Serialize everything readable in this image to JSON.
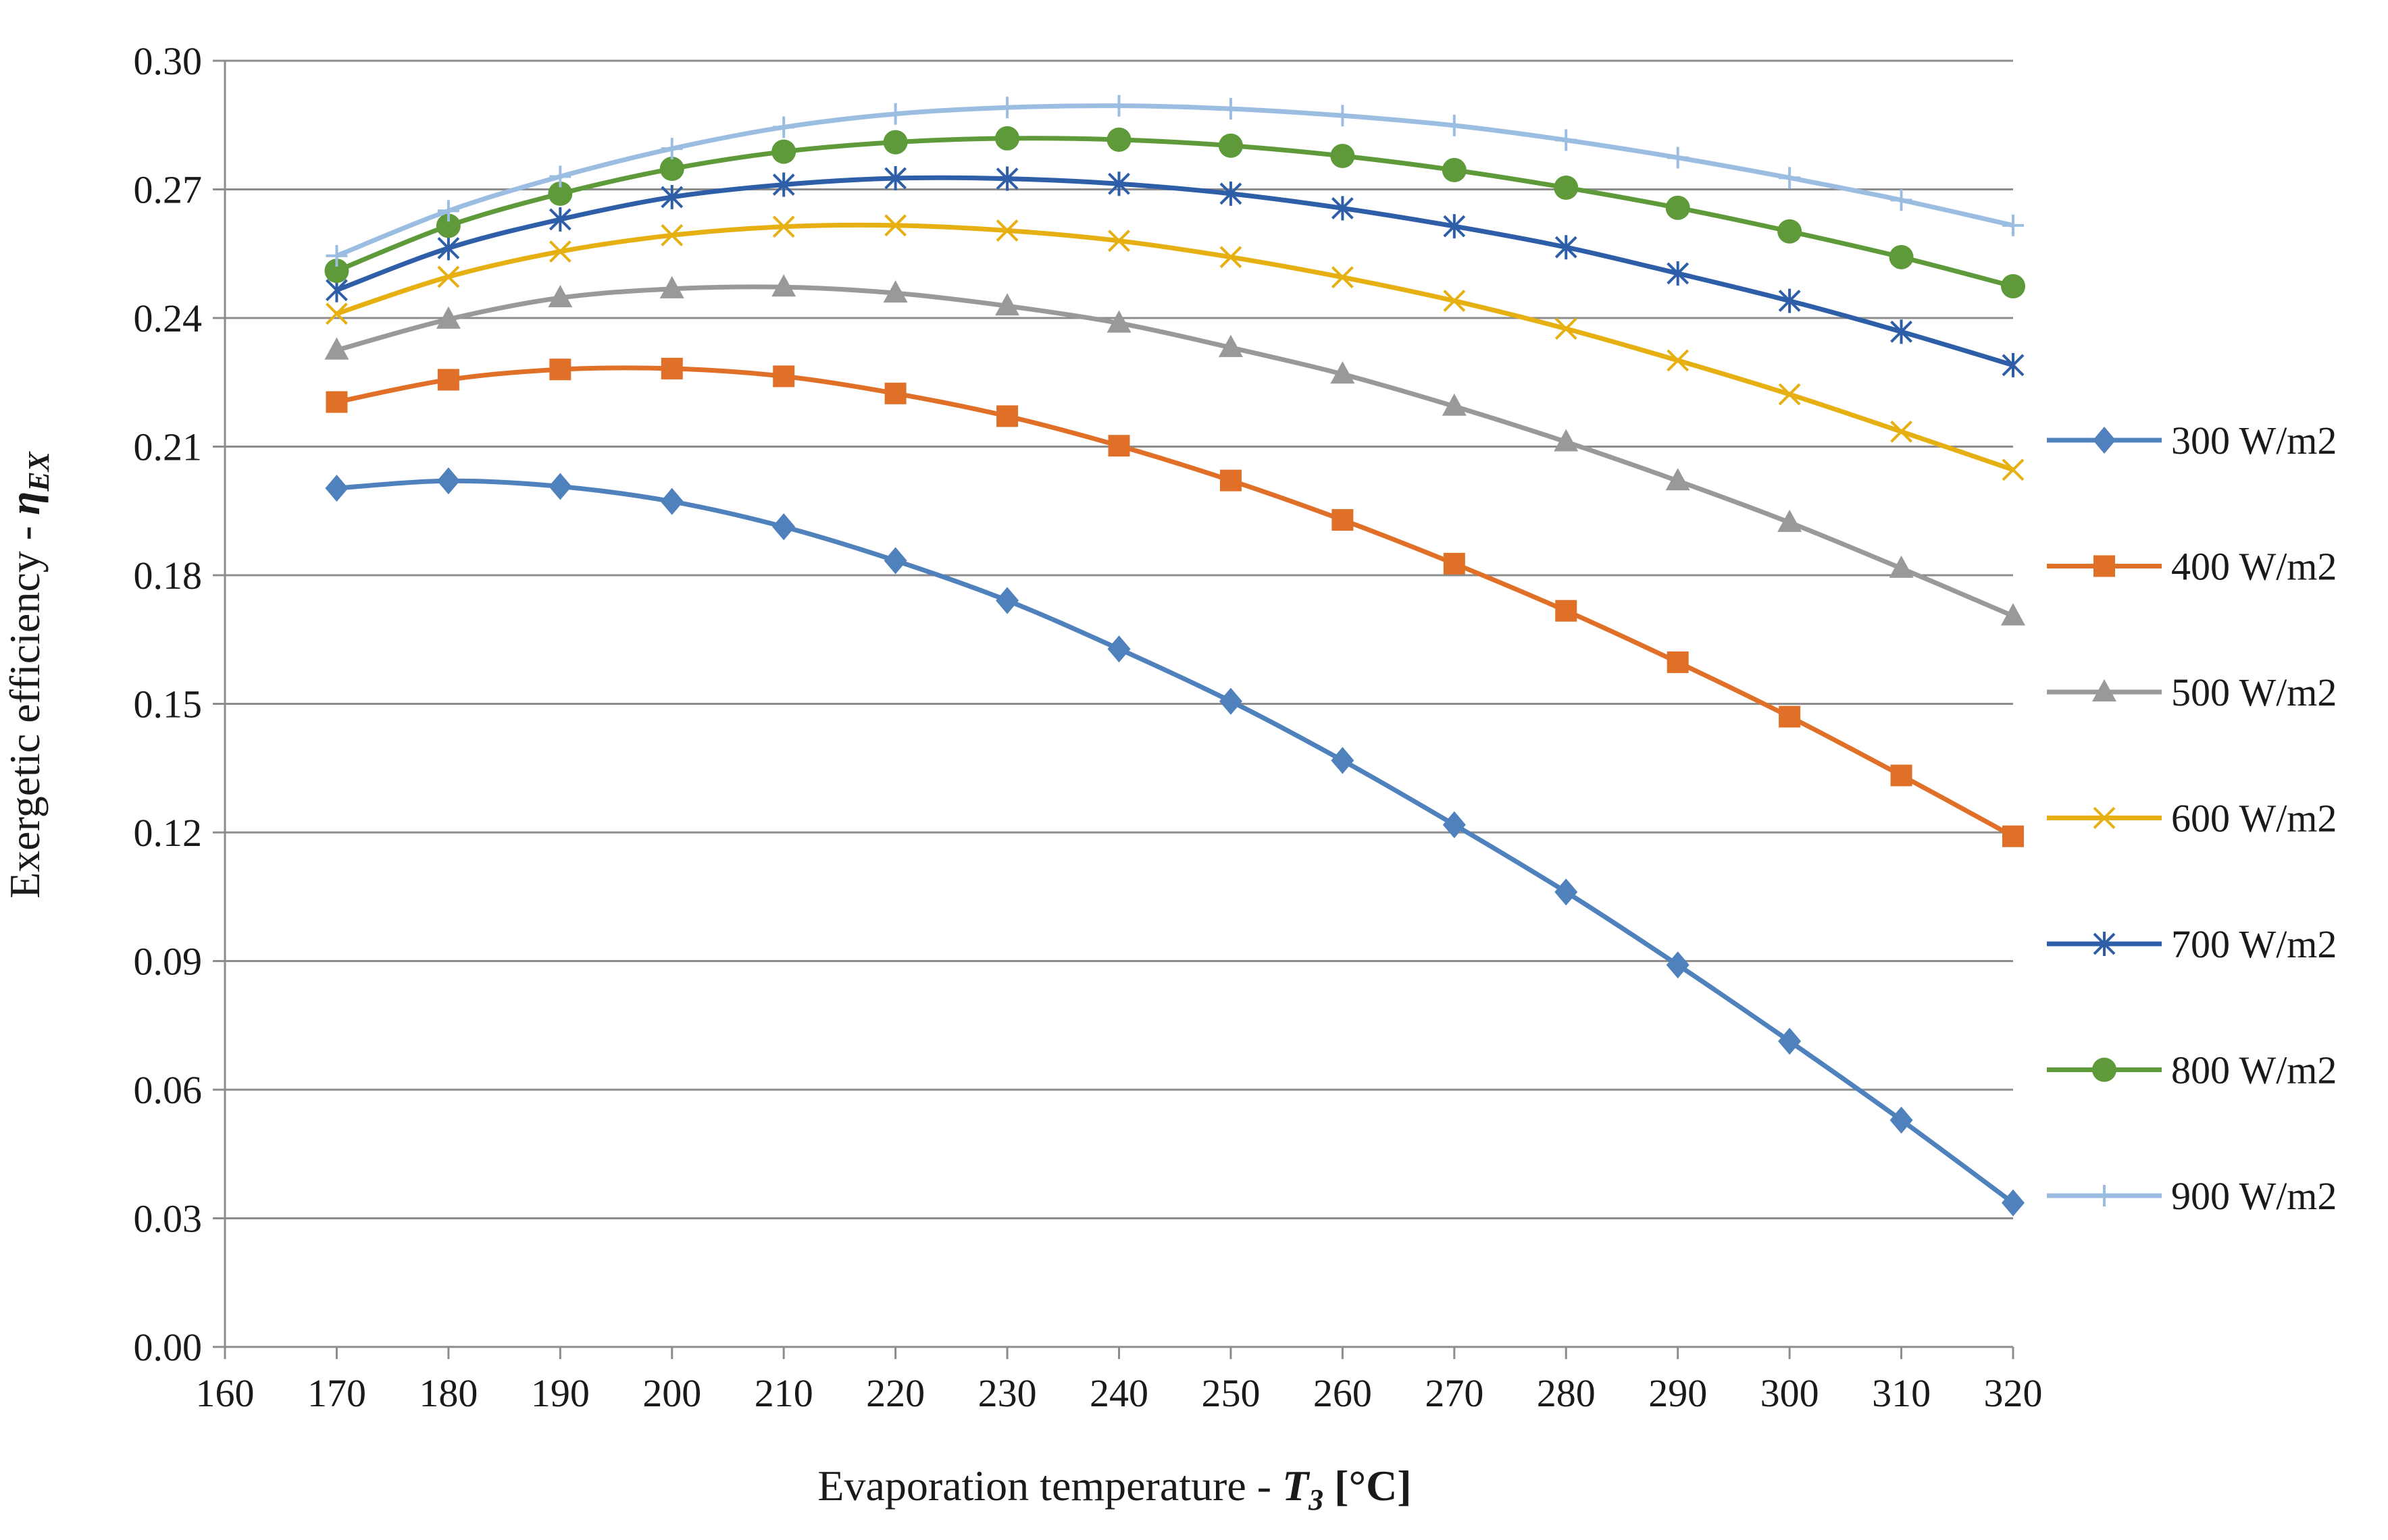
{
  "chart_data": {
    "type": "line",
    "title": "",
    "xlabel": {
      "text": "Evaporation temperature - ",
      "var": "T",
      "sub": "3",
      "unit": " [°C]"
    },
    "ylabel": {
      "text": "Exergetic efficiency - ",
      "var": "η",
      "sub": "EX"
    },
    "xlim": [
      160,
      320
    ],
    "ylim": [
      0,
      0.3
    ],
    "x_ticks": [
      160,
      170,
      180,
      190,
      200,
      210,
      220,
      230,
      240,
      250,
      260,
      270,
      280,
      290,
      300,
      310,
      320
    ],
    "x_tick_labels": [
      "160",
      "170",
      "180",
      "190",
      "200",
      "210",
      "220",
      "230",
      "240",
      "250",
      "260",
      "270",
      "280",
      "290",
      "300",
      "310",
      "320"
    ],
    "y_ticks": [
      0,
      0.03,
      0.06,
      0.09,
      0.12,
      0.15,
      0.18,
      0.21,
      0.24,
      0.27,
      0.3
    ],
    "y_tick_labels": [
      "0.00",
      "0.03",
      "0.06",
      "0.09",
      "0.12",
      "0.15",
      "0.18",
      "0.21",
      "0.24",
      "0.27",
      "0.30"
    ],
    "grid": "horizontal",
    "legend_position": "right",
    "x": [
      170,
      180,
      190,
      200,
      210,
      220,
      230,
      240,
      250,
      260,
      270,
      280,
      290,
      300,
      310,
      320
    ],
    "series": [
      {
        "name": "300 W/m2",
        "color": "#4f81bd",
        "marker": "diamond",
        "values": [
          0.2003,
          0.202,
          0.2007,
          0.1972,
          0.1913,
          0.1834,
          0.1741,
          0.1628,
          0.1506,
          0.1368,
          0.1218,
          0.1061,
          0.0891,
          0.0713,
          0.0529,
          0.0336
        ]
      },
      {
        "name": "400 W/m2",
        "color": "#e07028",
        "marker": "square",
        "values": [
          0.2204,
          0.2256,
          0.228,
          0.2282,
          0.2264,
          0.2224,
          0.2171,
          0.2102,
          0.2021,
          0.1929,
          0.1827,
          0.1717,
          0.1597,
          0.147,
          0.1333,
          0.1191
        ]
      },
      {
        "name": "500 W/m2",
        "color": "#999999",
        "marker": "triangle",
        "values": [
          0.2325,
          0.2397,
          0.2447,
          0.2468,
          0.2472,
          0.2458,
          0.2428,
          0.2388,
          0.2331,
          0.2269,
          0.2194,
          0.2111,
          0.202,
          0.1923,
          0.1816,
          0.1705
        ]
      },
      {
        "name": "600 W/m2",
        "color": "#e6b012",
        "marker": "x",
        "values": [
          0.241,
          0.2496,
          0.2555,
          0.2593,
          0.2613,
          0.2616,
          0.2604,
          0.258,
          0.2542,
          0.2495,
          0.244,
          0.2375,
          0.2301,
          0.2222,
          0.2135,
          0.2046
        ]
      },
      {
        "name": "700 W/m2",
        "color": "#2e5ea8",
        "marker": "star",
        "values": [
          0.2465,
          0.2563,
          0.263,
          0.2682,
          0.2711,
          0.2726,
          0.2725,
          0.2713,
          0.269,
          0.2656,
          0.2614,
          0.2565,
          0.2504,
          0.244,
          0.2368,
          0.229
        ]
      },
      {
        "name": "800 W/m2",
        "color": "#5e9a3a",
        "marker": "circle",
        "values": [
          0.251,
          0.2615,
          0.269,
          0.2748,
          0.2788,
          0.281,
          0.2819,
          0.2816,
          0.2802,
          0.2778,
          0.2745,
          0.2704,
          0.2657,
          0.2602,
          0.2542,
          0.2474
        ]
      },
      {
        "name": "900 W/m2",
        "color": "#9cbde2",
        "marker": "plus",
        "values": [
          0.2545,
          0.265,
          0.273,
          0.2795,
          0.2845,
          0.2876,
          0.2891,
          0.2895,
          0.2888,
          0.2872,
          0.2849,
          0.2815,
          0.2774,
          0.2727,
          0.2675,
          0.2616
        ]
      }
    ]
  }
}
